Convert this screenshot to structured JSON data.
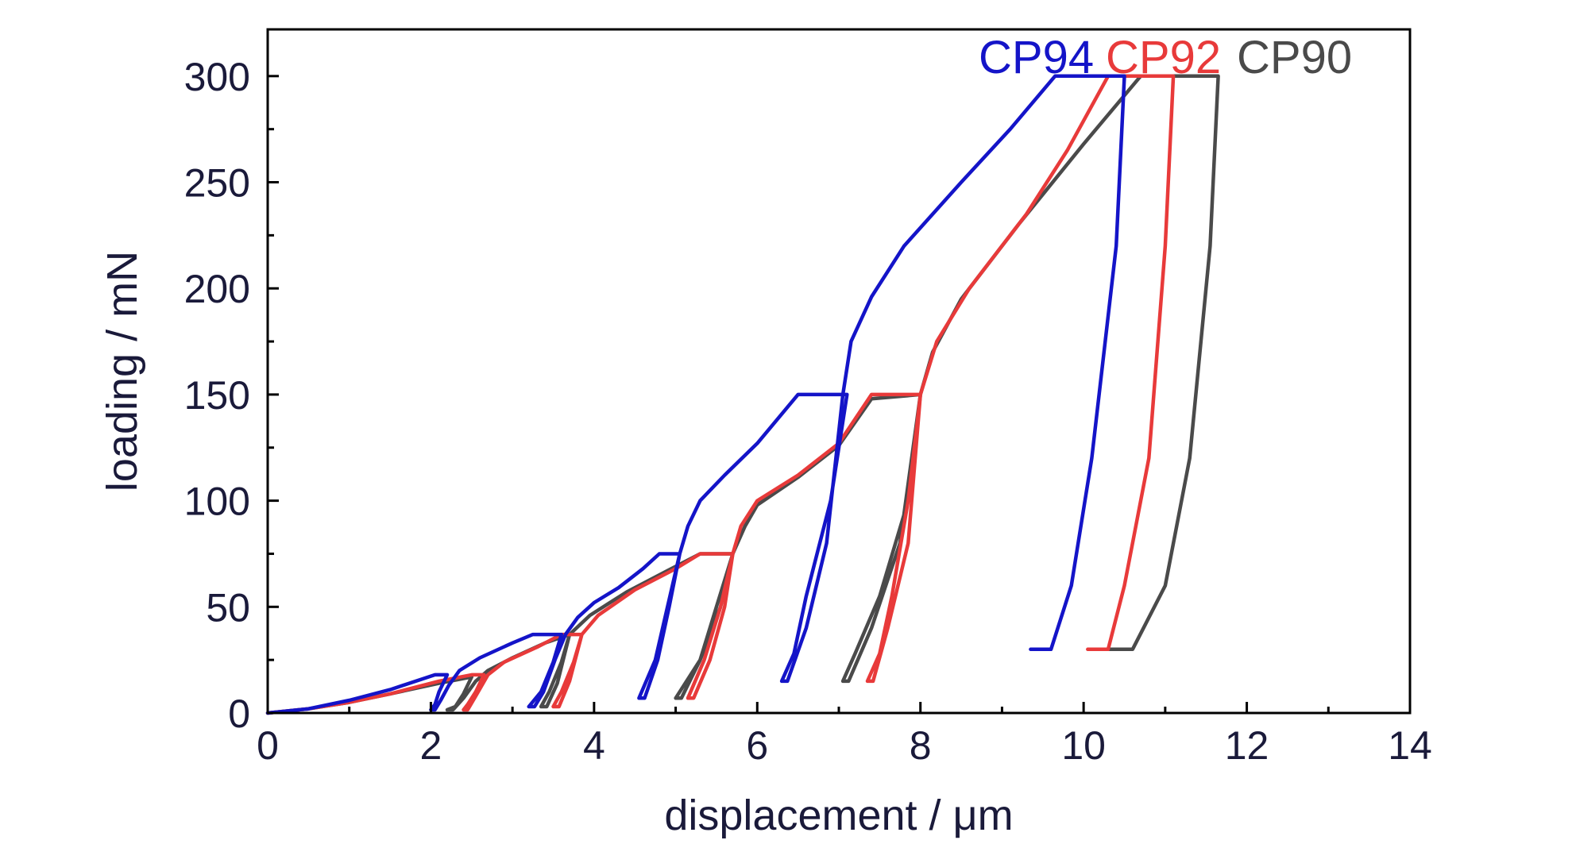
{
  "chart_data": {
    "type": "line",
    "xlabel": "displacement / μm",
    "ylabel": "loading / mN",
    "xlim": [
      0,
      14
    ],
    "ylim": [
      0,
      322
    ],
    "x_ticks": [
      0,
      2,
      4,
      6,
      8,
      10,
      12,
      14
    ],
    "y_ticks": [
      0,
      50,
      100,
      150,
      200,
      250,
      300
    ],
    "grid": false,
    "legend_position": "top-right",
    "series": [
      {
        "name": "CP94",
        "color": "#1414c8",
        "points": [
          [
            0,
            0
          ],
          [
            0.5,
            2
          ],
          [
            1.0,
            6
          ],
          [
            1.5,
            11
          ],
          [
            2.05,
            18
          ],
          [
            2.2,
            18
          ],
          [
            2.1,
            10
          ],
          [
            2.05,
            4
          ],
          [
            2.0,
            1.5
          ],
          [
            2.05,
            1.5
          ],
          [
            2.12,
            6
          ],
          [
            2.22,
            13
          ],
          [
            2.35,
            20
          ],
          [
            2.6,
            26
          ],
          [
            3.0,
            33
          ],
          [
            3.25,
            37
          ],
          [
            3.6,
            37
          ],
          [
            3.5,
            24
          ],
          [
            3.35,
            10
          ],
          [
            3.2,
            3
          ],
          [
            3.27,
            3
          ],
          [
            3.38,
            10
          ],
          [
            3.52,
            25
          ],
          [
            3.65,
            37
          ],
          [
            3.8,
            45
          ],
          [
            4.0,
            52
          ],
          [
            4.3,
            59
          ],
          [
            4.6,
            68
          ],
          [
            4.8,
            75
          ],
          [
            5.05,
            75
          ],
          [
            4.9,
            50
          ],
          [
            4.75,
            25
          ],
          [
            4.55,
            7
          ],
          [
            4.62,
            7
          ],
          [
            4.78,
            25
          ],
          [
            4.92,
            50
          ],
          [
            5.05,
            75
          ],
          [
            5.15,
            88
          ],
          [
            5.3,
            100
          ],
          [
            5.6,
            112
          ],
          [
            6.0,
            127
          ],
          [
            6.5,
            150
          ],
          [
            7.1,
            150
          ],
          [
            6.9,
            100
          ],
          [
            6.6,
            55
          ],
          [
            6.45,
            28
          ],
          [
            6.3,
            15
          ],
          [
            6.37,
            15
          ],
          [
            6.6,
            40
          ],
          [
            6.85,
            80
          ],
          [
            7.05,
            150
          ],
          [
            7.15,
            175
          ],
          [
            7.4,
            196
          ],
          [
            7.8,
            220
          ],
          [
            8.5,
            250
          ],
          [
            9.1,
            275
          ],
          [
            9.65,
            300
          ],
          [
            10.5,
            300
          ],
          [
            10.4,
            220
          ],
          [
            10.1,
            120
          ],
          [
            9.85,
            60
          ],
          [
            9.6,
            30
          ],
          [
            9.35,
            30
          ]
        ]
      },
      {
        "name": "CP92",
        "color": "#e83a3a",
        "points": [
          [
            0,
            0
          ],
          [
            0.5,
            2
          ],
          [
            1.0,
            5
          ],
          [
            1.5,
            9
          ],
          [
            2.1,
            15
          ],
          [
            2.5,
            18
          ],
          [
            2.65,
            18
          ],
          [
            2.55,
            10
          ],
          [
            2.45,
            4
          ],
          [
            2.4,
            1.5
          ],
          [
            2.45,
            1.5
          ],
          [
            2.55,
            8
          ],
          [
            2.7,
            18
          ],
          [
            2.9,
            24
          ],
          [
            3.3,
            31
          ],
          [
            3.6,
            37
          ],
          [
            3.85,
            37
          ],
          [
            3.75,
            24
          ],
          [
            3.6,
            10
          ],
          [
            3.5,
            3
          ],
          [
            3.57,
            3
          ],
          [
            3.7,
            15
          ],
          [
            3.85,
            37
          ],
          [
            4.05,
            46
          ],
          [
            4.5,
            58
          ],
          [
            5.0,
            68
          ],
          [
            5.3,
            75
          ],
          [
            5.7,
            75
          ],
          [
            5.55,
            50
          ],
          [
            5.35,
            25
          ],
          [
            5.15,
            7
          ],
          [
            5.22,
            7
          ],
          [
            5.42,
            25
          ],
          [
            5.6,
            50
          ],
          [
            5.7,
            75
          ],
          [
            5.8,
            88
          ],
          [
            6.0,
            100
          ],
          [
            6.5,
            112
          ],
          [
            7.0,
            127
          ],
          [
            7.4,
            150
          ],
          [
            8.0,
            150
          ],
          [
            7.85,
            100
          ],
          [
            7.65,
            55
          ],
          [
            7.5,
            28
          ],
          [
            7.35,
            15
          ],
          [
            7.42,
            15
          ],
          [
            7.6,
            40
          ],
          [
            7.85,
            80
          ],
          [
            8.0,
            150
          ],
          [
            8.2,
            175
          ],
          [
            8.6,
            200
          ],
          [
            9.3,
            235
          ],
          [
            9.8,
            265
          ],
          [
            10.3,
            300
          ],
          [
            11.1,
            300
          ],
          [
            11.0,
            220
          ],
          [
            10.8,
            120
          ],
          [
            10.5,
            60
          ],
          [
            10.3,
            30
          ],
          [
            10.05,
            30
          ]
        ]
      },
      {
        "name": "CP90",
        "color": "#4a4a4a",
        "points": [
          [
            0,
            0
          ],
          [
            0.5,
            2
          ],
          [
            1.0,
            5
          ],
          [
            1.5,
            9
          ],
          [
            2.1,
            14
          ],
          [
            2.5,
            17
          ],
          [
            2.4,
            9
          ],
          [
            2.3,
            3
          ],
          [
            2.2,
            1.5
          ],
          [
            2.27,
            1.5
          ],
          [
            2.4,
            7
          ],
          [
            2.55,
            15
          ],
          [
            2.7,
            20
          ],
          [
            3.0,
            26
          ],
          [
            3.4,
            33
          ],
          [
            3.7,
            37
          ],
          [
            3.6,
            24
          ],
          [
            3.45,
            10
          ],
          [
            3.35,
            3
          ],
          [
            3.42,
            3
          ],
          [
            3.55,
            14
          ],
          [
            3.7,
            37
          ],
          [
            3.95,
            46
          ],
          [
            4.4,
            57
          ],
          [
            4.9,
            67
          ],
          [
            5.3,
            75
          ],
          [
            5.7,
            75
          ],
          [
            5.55,
            50
          ],
          [
            5.3,
            25
          ],
          [
            5.0,
            7
          ],
          [
            5.07,
            7
          ],
          [
            5.3,
            25
          ],
          [
            5.5,
            50
          ],
          [
            5.7,
            75
          ],
          [
            5.85,
            88
          ],
          [
            6.0,
            98
          ],
          [
            6.5,
            111
          ],
          [
            7.0,
            126
          ],
          [
            7.4,
            148
          ],
          [
            8.0,
            150
          ],
          [
            7.85,
            100
          ],
          [
            7.5,
            55
          ],
          [
            7.2,
            28
          ],
          [
            7.05,
            15
          ],
          [
            7.12,
            15
          ],
          [
            7.4,
            40
          ],
          [
            7.75,
            80
          ],
          [
            8.0,
            150
          ],
          [
            8.15,
            170
          ],
          [
            8.5,
            195
          ],
          [
            9.2,
            230
          ],
          [
            10.0,
            268
          ],
          [
            10.7,
            300
          ],
          [
            11.65,
            300
          ],
          [
            11.55,
            220
          ],
          [
            11.3,
            120
          ],
          [
            11.0,
            60
          ],
          [
            10.6,
            30
          ],
          [
            10.3,
            30
          ]
        ]
      }
    ]
  }
}
